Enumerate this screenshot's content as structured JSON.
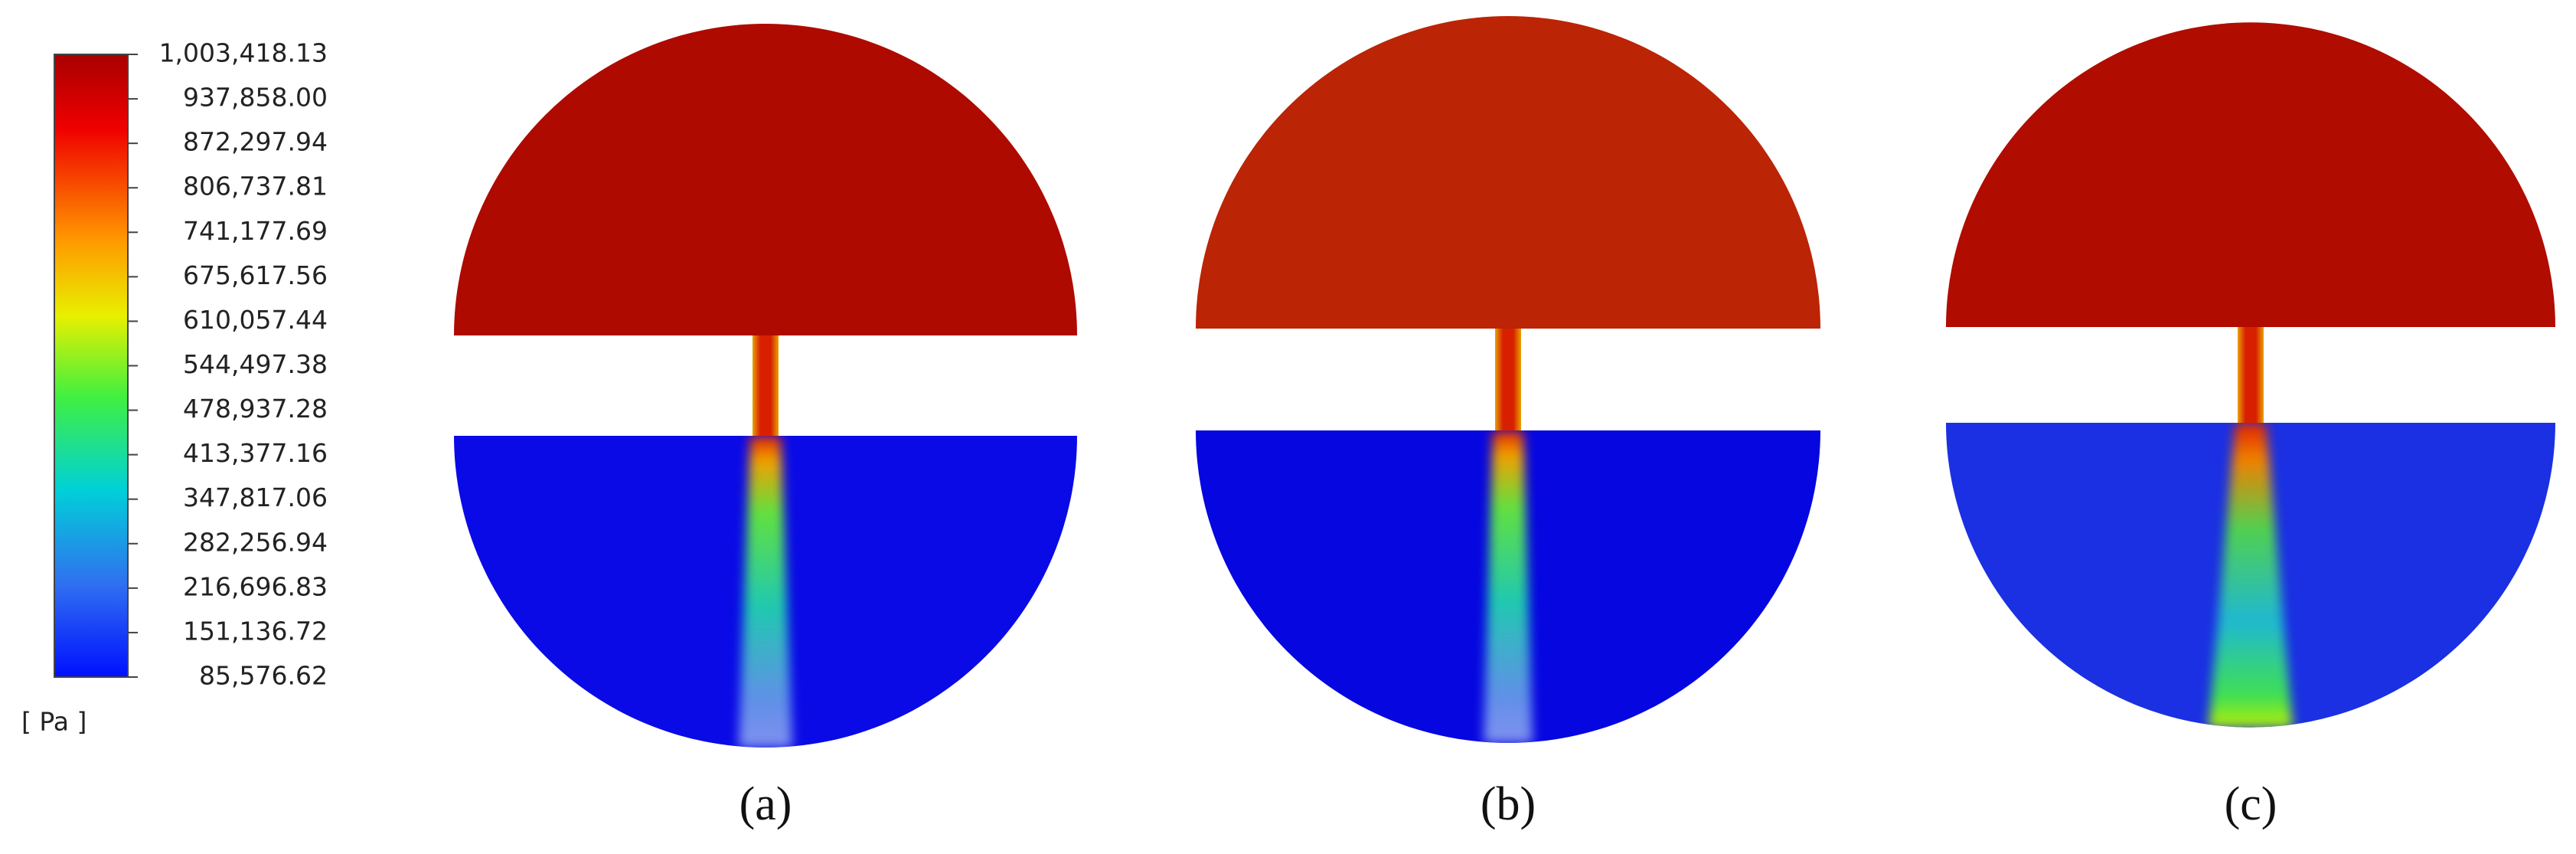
{
  "legend": {
    "ticks": [
      "1,003,418.13",
      "937,858.00",
      "872,297.94",
      "806,737.81",
      "741,177.69",
      "675,617.56",
      "610,057.44",
      "544,497.38",
      "478,937.28",
      "413,377.16",
      "347,817.06",
      "282,256.94",
      "216,696.83",
      "151,136.72",
      "85,576.62"
    ],
    "unit": "[ Pa ]"
  },
  "panels": [
    {
      "label": "(a)"
    },
    {
      "label": "(b)"
    },
    {
      "label": "(c)"
    }
  ]
}
